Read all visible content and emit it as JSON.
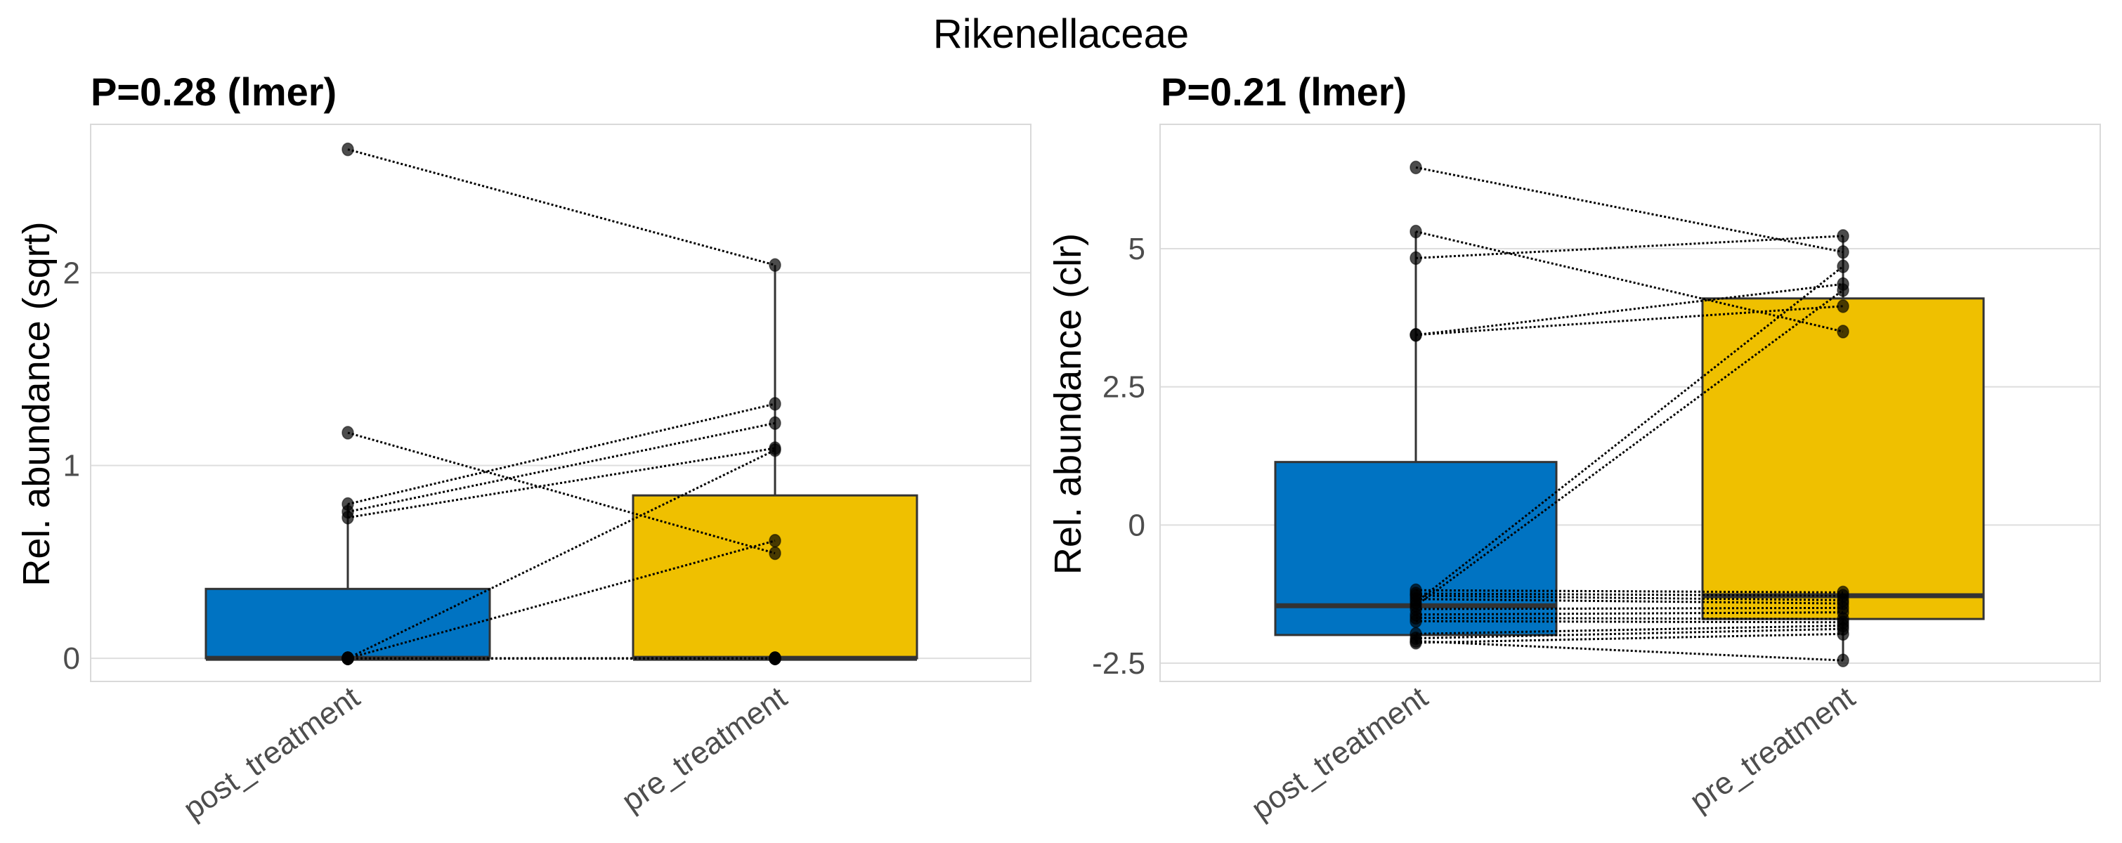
{
  "chart_data": {
    "type": "boxplot-paired",
    "title": "Rikenellaceae",
    "categories": [
      "post_treatment",
      "pre_treatment"
    ],
    "colors": {
      "post_treatment": "#0073C2",
      "pre_treatment": "#EFC000"
    },
    "panels": [
      {
        "subtitle": "P=0.28 (lmer)",
        "ylabel": "Rel. abundance (sqrt)",
        "ylim": [
          -0.12,
          2.77
        ],
        "yticks": [
          0,
          1,
          2
        ],
        "ytick_labels": [
          "0",
          "1",
          "2"
        ],
        "grid": true,
        "boxes": [
          {
            "category": "post_treatment",
            "q1": 0,
            "median": 0,
            "q3": 0.36,
            "whisker_low": 0,
            "whisker_high": 0.8
          },
          {
            "category": "pre_treatment",
            "q1": 0,
            "median": 0,
            "q3": 0.845,
            "whisker_low": 0,
            "whisker_high": 2.04
          }
        ],
        "pairs": [
          [
            2.64,
            2.04
          ],
          [
            1.17,
            0.545
          ],
          [
            0.8,
            1.32
          ],
          [
            0.76,
            1.22
          ],
          [
            0.73,
            1.09
          ],
          [
            0,
            1.08
          ],
          [
            0,
            0.61
          ],
          [
            0,
            0
          ],
          [
            0,
            0
          ],
          [
            0,
            0
          ],
          [
            0,
            0
          ],
          [
            0,
            0
          ],
          [
            0,
            0
          ],
          [
            0,
            0
          ],
          [
            0,
            0
          ],
          [
            0,
            0
          ]
        ]
      },
      {
        "subtitle": "P=0.21 (lmer)",
        "ylabel": "Rel. abundance (clr)",
        "ylim": [
          -2.83,
          7.25
        ],
        "yticks": [
          -2.5,
          0,
          2.5,
          5
        ],
        "ytick_labels": [
          "-2.5",
          "0",
          "2.5",
          "5"
        ],
        "grid": true,
        "boxes": [
          {
            "category": "post_treatment",
            "q1": -1.99,
            "median": -1.46,
            "q3": 1.14,
            "whisker_low": -2.13,
            "whisker_high": 5.31
          },
          {
            "category": "pre_treatment",
            "q1": -1.7,
            "median": -1.28,
            "q3": 4.1,
            "whisker_low": -2.45,
            "whisker_high": 5.23
          }
        ],
        "pairs": [
          [
            6.47,
            4.94
          ],
          [
            5.31,
            3.5
          ],
          [
            4.83,
            5.23
          ],
          [
            3.44,
            4.36
          ],
          [
            3.44,
            3.96
          ],
          [
            -1.4,
            4.68
          ],
          [
            -1.46,
            4.25
          ],
          [
            -1.18,
            -1.22
          ],
          [
            -1.24,
            -1.28
          ],
          [
            -1.28,
            -1.36
          ],
          [
            -1.34,
            -1.42
          ],
          [
            -1.52,
            -1.5
          ],
          [
            -1.62,
            -1.58
          ],
          [
            -1.68,
            -1.7
          ],
          [
            -1.74,
            -1.76
          ],
          [
            -1.97,
            -1.82
          ],
          [
            -2.05,
            -1.88
          ],
          [
            -2.13,
            -1.97
          ],
          [
            -2.1,
            -2.45
          ]
        ]
      }
    ]
  }
}
